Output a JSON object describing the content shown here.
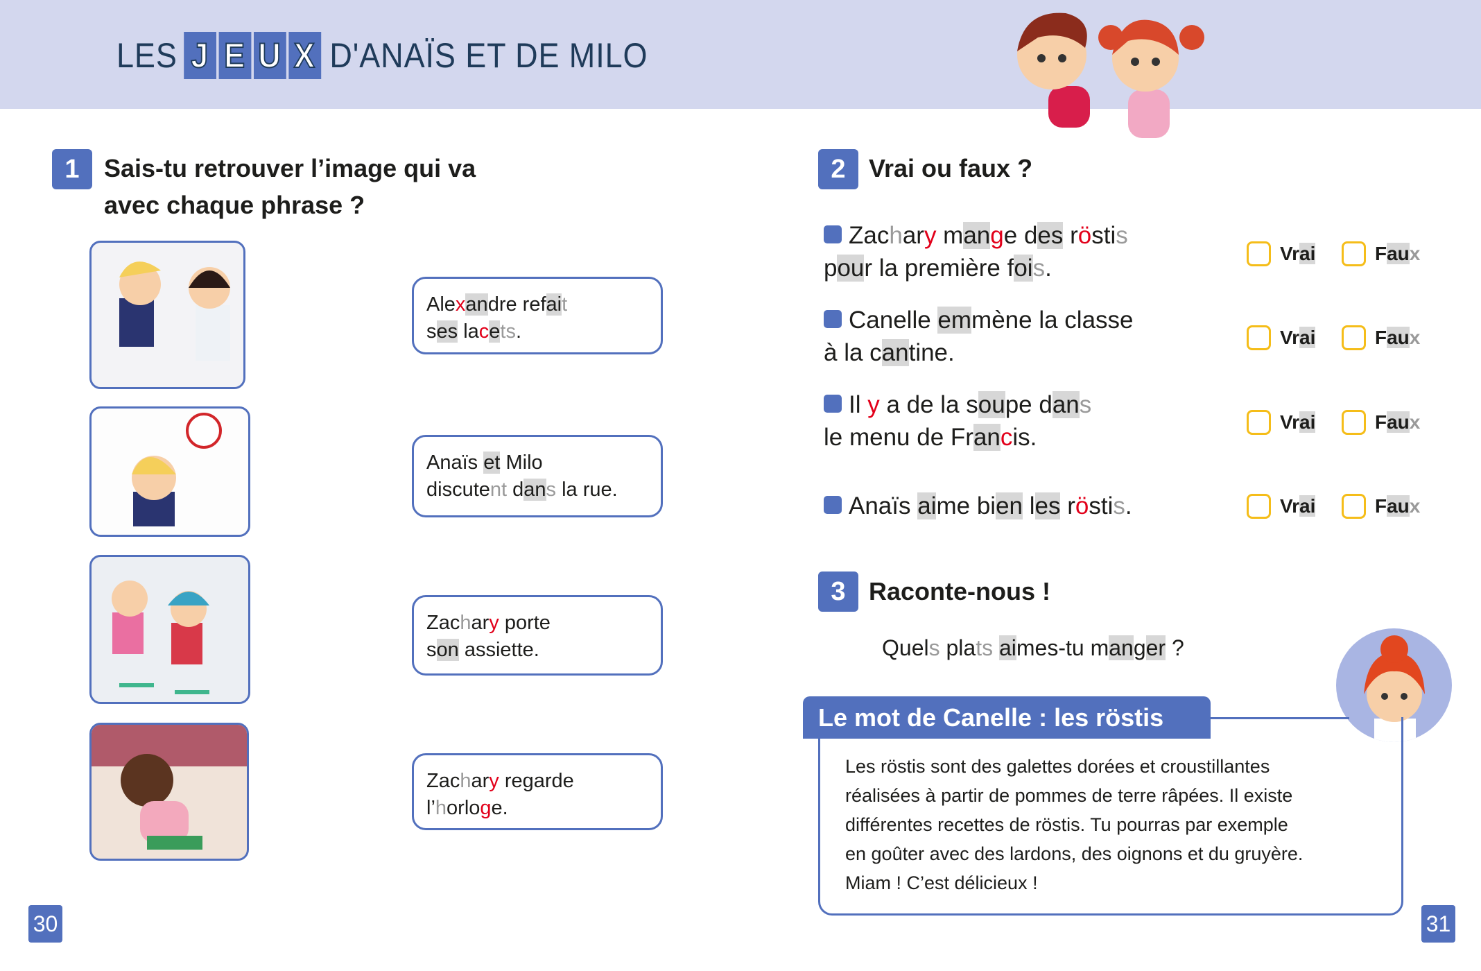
{
  "header": {
    "title_prefix": "LES",
    "title_tiles": [
      "J",
      "E",
      "U",
      "X"
    ],
    "title_suffix": "D'ANAÏS ET DE MILO"
  },
  "colors": {
    "accent": "#5270bd",
    "band": "#d3d7ee",
    "checkbox": "#f5bd19",
    "red": "#e2001a",
    "highlight": "#d7d7d7"
  },
  "exercise1": {
    "number": "1",
    "title_line1": "Sais-tu retrouver l’image qui va",
    "title_line2": "avec chaque phrase ?",
    "pictures": [
      "kids-offering-food",
      "boy-and-clock",
      "kids-on-scooters",
      "boy-crouching"
    ],
    "sentences": [
      [
        [
          [
            "Ale",
            ""
          ],
          [
            "x",
            "r"
          ],
          [
            "an",
            "h"
          ],
          [
            "dre ref",
            ""
          ],
          [
            "ai",
            "h"
          ],
          [
            "t",
            "l"
          ]
        ],
        [
          [
            "s",
            ""
          ],
          [
            "es",
            "h"
          ],
          [
            " la",
            ""
          ],
          [
            "c",
            "r"
          ],
          [
            "e",
            "h"
          ],
          [
            "t",
            "l"
          ],
          [
            "s",
            "l"
          ],
          [
            ".",
            ""
          ]
        ]
      ],
      [
        [
          [
            "Anaïs ",
            ""
          ],
          [
            "et",
            "h"
          ],
          [
            " Milo",
            ""
          ]
        ],
        [
          [
            "discute",
            ""
          ],
          [
            "nt",
            "l"
          ],
          [
            " d",
            ""
          ],
          [
            "an",
            "h"
          ],
          [
            "s",
            "l"
          ],
          [
            " la rue.",
            ""
          ]
        ]
      ],
      [
        [
          [
            "Zac",
            ""
          ],
          [
            "h",
            "l"
          ],
          [
            "ar",
            ""
          ],
          [
            "y",
            "r"
          ],
          [
            " porte",
            ""
          ]
        ],
        [
          [
            "s",
            ""
          ],
          [
            "on",
            "h"
          ],
          [
            " assiette.",
            ""
          ]
        ]
      ],
      [
        [
          [
            "Zac",
            ""
          ],
          [
            "h",
            "l"
          ],
          [
            "ar",
            ""
          ],
          [
            "y",
            "r"
          ],
          [
            " regarde",
            ""
          ]
        ],
        [
          [
            "l’",
            ""
          ],
          [
            "h",
            "l"
          ],
          [
            "orlo",
            ""
          ],
          [
            "g",
            "r"
          ],
          [
            "e.",
            ""
          ]
        ]
      ]
    ]
  },
  "exercise2": {
    "number": "2",
    "title": "Vrai ou faux ?",
    "true_label": [
      [
        "Vr",
        ""
      ],
      [
        "ai",
        "h"
      ]
    ],
    "false_label": [
      [
        "F",
        ""
      ],
      [
        "au",
        "h"
      ],
      [
        "x",
        "l"
      ]
    ],
    "statements": [
      [
        [
          [
            "Zac",
            ""
          ],
          [
            "h",
            "l"
          ],
          [
            "ar",
            ""
          ],
          [
            "y",
            "r"
          ],
          [
            " m",
            ""
          ],
          [
            "an",
            "h"
          ],
          [
            "g",
            "r"
          ],
          [
            "e d",
            ""
          ],
          [
            "es",
            "h"
          ],
          [
            " r",
            ""
          ],
          [
            "ö",
            "r"
          ],
          [
            "sti",
            ""
          ],
          [
            "s",
            "l"
          ]
        ],
        [
          [
            "p",
            ""
          ],
          [
            "ou",
            "h"
          ],
          [
            "r la première f",
            ""
          ],
          [
            "oi",
            "h"
          ],
          [
            "s",
            "l"
          ],
          [
            ".",
            ""
          ]
        ]
      ],
      [
        [
          [
            "Canelle ",
            ""
          ],
          [
            "em",
            "h"
          ],
          [
            "mène la classe",
            ""
          ]
        ],
        [
          [
            "à la c",
            ""
          ],
          [
            "an",
            "h"
          ],
          [
            "tine.",
            ""
          ]
        ]
      ],
      [
        [
          [
            "Il ",
            ""
          ],
          [
            "y",
            "r"
          ],
          [
            " a de la s",
            ""
          ],
          [
            "ou",
            "h"
          ],
          [
            "pe d",
            ""
          ],
          [
            "an",
            "h"
          ],
          [
            "s",
            "l"
          ]
        ],
        [
          [
            "le menu de Fr",
            ""
          ],
          [
            "an",
            "h"
          ],
          [
            "c",
            "r"
          ],
          [
            "is.",
            ""
          ]
        ]
      ],
      [
        [
          [
            "Anaïs ",
            ""
          ],
          [
            "ai",
            "h"
          ],
          [
            "me bi",
            ""
          ],
          [
            "en",
            "h"
          ],
          [
            " l",
            ""
          ],
          [
            "es",
            "h"
          ],
          [
            " r",
            ""
          ],
          [
            "ö",
            "r"
          ],
          [
            "sti",
            ""
          ],
          [
            "s",
            "l"
          ],
          [
            ".",
            ""
          ]
        ]
      ]
    ]
  },
  "exercise3": {
    "number": "3",
    "title": "Raconte-nous !",
    "question": [
      [
        "Quel",
        ""
      ],
      [
        "s",
        "l"
      ],
      [
        " pla",
        ""
      ],
      [
        "ts",
        "l"
      ],
      [
        " ",
        ""
      ],
      [
        "ai",
        "h"
      ],
      [
        "mes-tu m",
        ""
      ],
      [
        "an",
        "h"
      ],
      [
        "g",
        ""
      ],
      [
        "er",
        "h"
      ],
      [
        " ?",
        ""
      ]
    ]
  },
  "mot": {
    "title": "Le mot de Canelle : les röstis",
    "lines": [
      "Les röstis sont des galettes dorées et croustillantes",
      "réalisées à partir de pommes de terre râpées. Il existe",
      "différentes recettes de röstis. Tu pourras par exemple",
      "en goûter avec des lardons, des oignons et du gruyère.",
      "Miam ! C’est délicieux !"
    ]
  },
  "pages": {
    "left": "30",
    "right": "31"
  }
}
